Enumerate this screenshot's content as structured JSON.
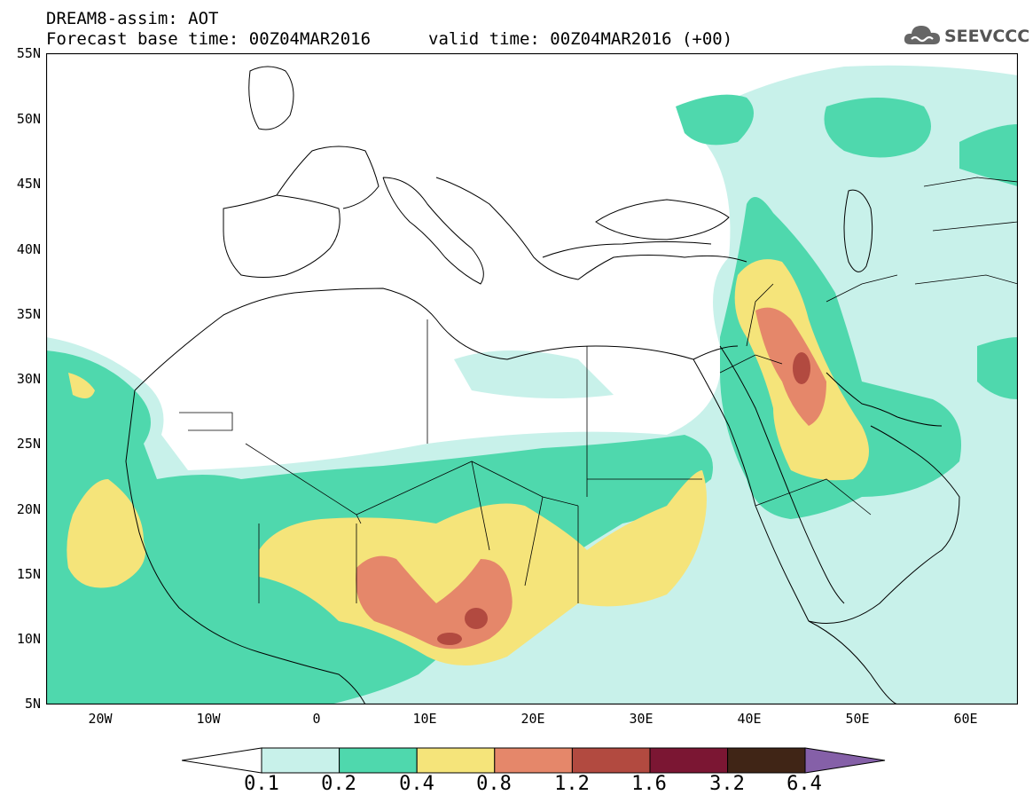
{
  "header": {
    "title": "DREAM8-assim: AOT",
    "base_time": "Forecast base time: 00Z04MAR2016",
    "valid_time": "valid time: 00Z04MAR2016 (+00)",
    "logo_text": "SEEVCCC"
  },
  "map": {
    "lat_labels": [
      "55N",
      "50N",
      "45N",
      "40N",
      "35N",
      "30N",
      "25N",
      "20N",
      "15N",
      "10N",
      "5N"
    ],
    "lon_labels": [
      "20W",
      "10W",
      "0",
      "10E",
      "20E",
      "30E",
      "40E",
      "50E",
      "60E"
    ],
    "extent": {
      "lon_min": -25,
      "lon_max": 65,
      "lat_min": 5,
      "lat_max": 55
    }
  },
  "legend": {
    "labels": [
      "0.1",
      "0.2",
      "0.4",
      "0.8",
      "1.2",
      "1.6",
      "3.2",
      "6.4"
    ],
    "colors": [
      "#c8f1ea",
      "#4fd8ad",
      "#f5e47a",
      "#e5876a",
      "#b24a40",
      "#7b1633",
      "#402516",
      "#8560a8"
    ],
    "low_end_color": "#ffffff"
  },
  "colors": {
    "c1": "#c8f1ea",
    "c2": "#4fd8ad",
    "c3": "#f5e47a",
    "c4": "#e5876a",
    "c5": "#b24a40"
  }
}
